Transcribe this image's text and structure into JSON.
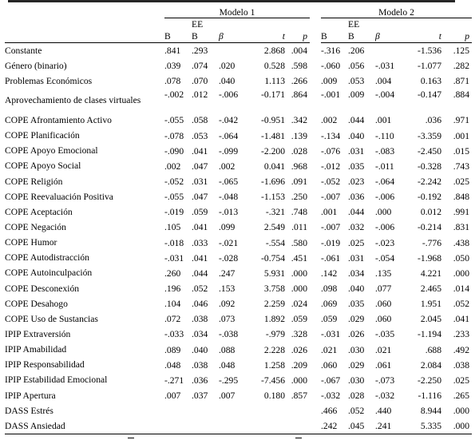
{
  "header": {
    "model1": "Modelo 1",
    "model2": "Modelo 2",
    "ee": "EE",
    "cols": [
      "B",
      "B",
      "β",
      "t",
      "p"
    ]
  },
  "rows": [
    {
      "label": "Constante",
      "m1": [
        ".841",
        ".293",
        "",
        "2.868",
        ".004"
      ],
      "m2": [
        "-.316",
        ".206",
        "",
        "-1.536",
        ".125"
      ]
    },
    {
      "label": "Género (binario)",
      "m1": [
        ".039",
        ".074",
        ".020",
        "0.528",
        ".598"
      ],
      "m2": [
        "-.060",
        ".056",
        "-.031",
        "-1.077",
        ".282"
      ]
    },
    {
      "label": "Problemas Económicos",
      "m1": [
        ".078",
        ".070",
        ".040",
        "1.113",
        ".266"
      ],
      "m2": [
        ".009",
        ".053",
        ".004",
        "0.163",
        ".871"
      ]
    },
    {
      "label": "Aprovechamiento de clases virtuales",
      "m1": [
        "-.002",
        ".012",
        "-.006",
        "-0.171",
        ".864"
      ],
      "m2": [
        "-.001",
        ".009",
        "-.004",
        "-0.147",
        ".884"
      ],
      "tall": true
    },
    {
      "label": "COPE Afrontamiento Activo",
      "m1": [
        "-.055",
        ".058",
        "-.042",
        "-0.951",
        ".342"
      ],
      "m2": [
        ".002",
        ".044",
        ".001",
        ".036",
        ".971"
      ]
    },
    {
      "label": "COPE Planificación",
      "m1": [
        "-.078",
        ".053",
        "-.064",
        "-1.481",
        ".139"
      ],
      "m2": [
        "-.134",
        ".040",
        "-.110",
        "-3.359",
        ".001"
      ]
    },
    {
      "label": "COPE Apoyo Emocional",
      "m1": [
        "-.090",
        ".041",
        "-.099",
        "-2.200",
        ".028"
      ],
      "m2": [
        "-.076",
        ".031",
        "-.083",
        "-2.450",
        ".015"
      ]
    },
    {
      "label": "COPE Apoyo Social",
      "m1": [
        ".002",
        ".047",
        ".002",
        "0.041",
        ".968"
      ],
      "m2": [
        "-.012",
        ".035",
        "-.011",
        "-0.328",
        ".743"
      ]
    },
    {
      "label": "COPE Religión",
      "m1": [
        "-.052",
        ".031",
        "-.065",
        "-1.696",
        ".091"
      ],
      "m2": [
        "-.052",
        ".023",
        "-.064",
        "-2.242",
        ".025"
      ]
    },
    {
      "label": "COPE Reevaluación Positiva",
      "m1": [
        "-.055",
        ".047",
        "-.048",
        "-1.153",
        ".250"
      ],
      "m2": [
        "-.007",
        ".036",
        "-.006",
        "-0.192",
        ".848"
      ]
    },
    {
      "label": "COPE Aceptación",
      "m1": [
        "-.019",
        ".059",
        "-.013",
        "-.321",
        ".748"
      ],
      "m2": [
        ".001",
        ".044",
        ".000",
        "0.012",
        ".991"
      ]
    },
    {
      "label": "COPE Negación",
      "m1": [
        ".105",
        ".041",
        ".099",
        "2.549",
        ".011"
      ],
      "m2": [
        "-.007",
        ".032",
        "-.006",
        "-0.214",
        ".831"
      ]
    },
    {
      "label": "COPE Humor",
      "m1": [
        "-.018",
        ".033",
        "-.021",
        "-.554",
        ".580"
      ],
      "m2": [
        "-.019",
        ".025",
        "-.023",
        "-.776",
        ".438"
      ]
    },
    {
      "label": "COPE Autodistracción",
      "m1": [
        "-.031",
        ".041",
        "-.028",
        "-0.754",
        ".451"
      ],
      "m2": [
        "-.061",
        ".031",
        "-.054",
        "-1.968",
        ".050"
      ]
    },
    {
      "label": "COPE Autoinculpación",
      "m1": [
        ".260",
        ".044",
        ".247",
        "5.931",
        ".000"
      ],
      "m2": [
        ".142",
        ".034",
        ".135",
        "4.221",
        ".000"
      ]
    },
    {
      "label": "COPE Desconexión",
      "m1": [
        ".196",
        ".052",
        ".153",
        "3.758",
        ".000"
      ],
      "m2": [
        ".098",
        ".040",
        ".077",
        "2.465",
        ".014"
      ]
    },
    {
      "label": "COPE Desahogo",
      "m1": [
        ".104",
        ".046",
        ".092",
        "2.259",
        ".024"
      ],
      "m2": [
        ".069",
        ".035",
        ".060",
        "1.951",
        ".052"
      ]
    },
    {
      "label": "COPE Uso de Sustancias",
      "m1": [
        ".072",
        ".038",
        ".073",
        "1.892",
        ".059"
      ],
      "m2": [
        ".059",
        ".029",
        ".060",
        "2.045",
        ".041"
      ]
    },
    {
      "label": "IPIP Extraversión",
      "m1": [
        "-.033",
        ".034",
        "-.038",
        "-.979",
        ".328"
      ],
      "m2": [
        "-.031",
        ".026",
        "-.035",
        "-1.194",
        ".233"
      ]
    },
    {
      "label": "IPIP Amabilidad",
      "m1": [
        ".089",
        ".040",
        ".088",
        "2.228",
        ".026"
      ],
      "m2": [
        ".021",
        ".030",
        ".021",
        ".688",
        ".492"
      ]
    },
    {
      "label": "IPIP Responsabilidad",
      "m1": [
        ".048",
        ".038",
        ".048",
        "1.258",
        ".209"
      ],
      "m2": [
        ".060",
        ".029",
        ".061",
        "2.084",
        ".038"
      ]
    },
    {
      "label": "IPIP Estabilidad Emocional",
      "m1": [
        "-.271",
        ".036",
        "-.295",
        "-7.456",
        ".000"
      ],
      "m2": [
        "-.067",
        ".030",
        "-.073",
        "-2.250",
        ".025"
      ]
    },
    {
      "label": "IPIP Apertura",
      "m1": [
        ".007",
        ".037",
        ".007",
        "0.180",
        ".857"
      ],
      "m2": [
        "-.032",
        ".028",
        "-.032",
        "-1.116",
        ".265"
      ]
    },
    {
      "label": "DASS Estrés",
      "m1": [
        "",
        "",
        "",
        "",
        ""
      ],
      "m2": [
        ".466",
        ".052",
        ".440",
        "8.944",
        ".000"
      ]
    },
    {
      "label": "DASS Ansiedad",
      "m1": [
        "",
        "",
        "",
        "",
        ""
      ],
      "m2": [
        ".242",
        ".045",
        ".241",
        "5.335",
        ".000"
      ]
    }
  ]
}
